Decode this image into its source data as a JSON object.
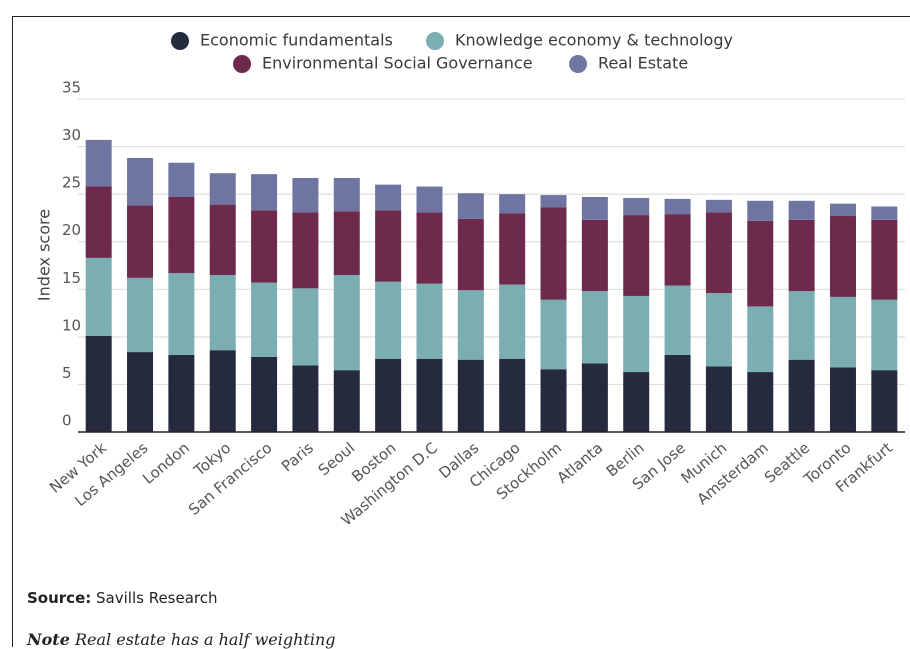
{
  "chart_data": {
    "type": "stacked_bar",
    "y_label": "Index score",
    "categories": [
      "New York",
      "Los Angeles",
      "London",
      "Tokyo",
      "San Francisco",
      "Paris",
      "Seoul",
      "Boston",
      "Washington D.C",
      "Dallas",
      "Chicago",
      "Stockholm",
      "Atlanta",
      "Berlin",
      "San Jose",
      "Munich",
      "Amsterdam",
      "Seattle",
      "Toronto",
      "Frankfurt"
    ],
    "series": [
      {
        "name": "Economic fundamentals",
        "color": "#262a3e",
        "values": [
          10.1,
          8.4,
          8.1,
          8.6,
          7.9,
          7.0,
          6.5,
          7.7,
          7.7,
          7.6,
          7.7,
          6.6,
          7.2,
          6.3,
          8.1,
          6.9,
          6.3,
          7.6,
          6.8,
          6.5
        ]
      },
      {
        "name": "Knowledge economy & technology",
        "color": "#7aaeb3",
        "values": [
          8.2,
          7.8,
          8.6,
          7.9,
          7.8,
          8.1,
          10.0,
          8.1,
          7.9,
          7.3,
          7.8,
          7.3,
          7.6,
          8.0,
          7.3,
          7.7,
          6.9,
          7.2,
          7.4,
          7.4
        ]
      },
      {
        "name": "Environmental Social Governance",
        "color": "#6e2a4c",
        "values": [
          7.5,
          7.6,
          8.0,
          7.4,
          7.6,
          8.0,
          6.7,
          7.5,
          7.5,
          7.5,
          7.5,
          9.7,
          7.5,
          8.5,
          7.5,
          8.5,
          9.0,
          7.5,
          8.5,
          8.4
        ]
      },
      {
        "name": "Real Estate",
        "color": "#6e75a0",
        "values": [
          4.9,
          5.0,
          3.6,
          3.3,
          3.8,
          3.6,
          3.5,
          2.7,
          2.7,
          2.7,
          2.0,
          1.3,
          2.4,
          1.8,
          1.6,
          1.3,
          2.1,
          2.0,
          1.3,
          1.4
        ]
      }
    ],
    "ylim": [
      0,
      35
    ],
    "yticks": [
      0,
      5,
      10,
      15,
      20,
      25,
      30,
      35
    ],
    "grid": true,
    "source_label": "Source:",
    "source": "Savills Research",
    "note_label": "Note",
    "note": "Real estate has a half weighting"
  }
}
